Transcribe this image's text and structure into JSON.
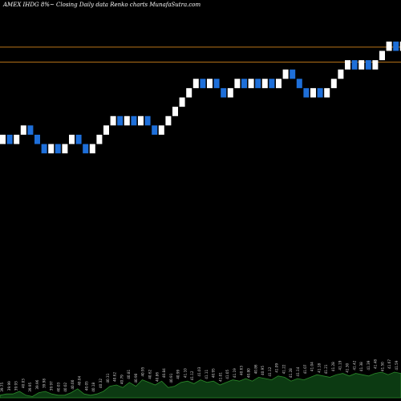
{
  "chart_data": {
    "type": "renko",
    "title": "AMEX  IHDG 8%~  Closing Daily data  Renko  charts MunafaSutra.com",
    "bricks": [
      {
        "close": 40.5,
        "dir": "up"
      },
      {
        "close": 40.25,
        "dir": "down"
      },
      {
        "close": 40.5,
        "dir": "up"
      },
      {
        "close": 40.75,
        "dir": "up"
      },
      {
        "close": 40.5,
        "dir": "down"
      },
      {
        "close": 40.25,
        "dir": "down"
      },
      {
        "close": 40.0,
        "dir": "down"
      },
      {
        "close": 40.25,
        "dir": "up"
      },
      {
        "close": 40.0,
        "dir": "down"
      },
      {
        "close": 40.25,
        "dir": "up"
      },
      {
        "close": 40.5,
        "dir": "up"
      },
      {
        "close": 40.25,
        "dir": "down"
      },
      {
        "close": 40.0,
        "dir": "down"
      },
      {
        "close": 40.25,
        "dir": "up"
      },
      {
        "close": 40.5,
        "dir": "up"
      },
      {
        "close": 40.75,
        "dir": "up"
      },
      {
        "close": 41.0,
        "dir": "up"
      },
      {
        "close": 40.75,
        "dir": "down"
      },
      {
        "close": 41.0,
        "dir": "up"
      },
      {
        "close": 40.75,
        "dir": "down"
      },
      {
        "close": 41.0,
        "dir": "up"
      },
      {
        "close": 40.75,
        "dir": "down"
      },
      {
        "close": 40.5,
        "dir": "down"
      },
      {
        "close": 40.75,
        "dir": "up"
      },
      {
        "close": 41.0,
        "dir": "up"
      },
      {
        "close": 41.25,
        "dir": "up"
      },
      {
        "close": 41.5,
        "dir": "up"
      },
      {
        "close": 41.75,
        "dir": "up"
      },
      {
        "close": 42.0,
        "dir": "up"
      },
      {
        "close": 41.75,
        "dir": "down"
      },
      {
        "close": 42.0,
        "dir": "up"
      },
      {
        "close": 41.75,
        "dir": "down"
      },
      {
        "close": 41.5,
        "dir": "down"
      },
      {
        "close": 41.75,
        "dir": "up"
      },
      {
        "close": 42.0,
        "dir": "up"
      },
      {
        "close": 41.75,
        "dir": "down"
      },
      {
        "close": 42.0,
        "dir": "up"
      },
      {
        "close": 41.75,
        "dir": "down"
      },
      {
        "close": 42.0,
        "dir": "up"
      },
      {
        "close": 41.75,
        "dir": "down"
      },
      {
        "close": 42.0,
        "dir": "up"
      },
      {
        "close": 42.25,
        "dir": "up"
      },
      {
        "close": 42.0,
        "dir": "down"
      },
      {
        "close": 41.75,
        "dir": "down"
      },
      {
        "close": 41.5,
        "dir": "down"
      },
      {
        "close": 41.75,
        "dir": "up"
      },
      {
        "close": 41.5,
        "dir": "down"
      },
      {
        "close": 41.75,
        "dir": "up"
      },
      {
        "close": 42.0,
        "dir": "up"
      },
      {
        "close": 42.25,
        "dir": "up"
      },
      {
        "close": 42.5,
        "dir": "up"
      },
      {
        "close": 42.25,
        "dir": "down"
      },
      {
        "close": 42.5,
        "dir": "up"
      },
      {
        "close": 42.25,
        "dir": "down"
      },
      {
        "close": 42.5,
        "dir": "up"
      },
      {
        "close": 42.75,
        "dir": "up"
      },
      {
        "close": 43.0,
        "dir": "up"
      },
      {
        "close": 42.75,
        "dir": "down"
      },
      {
        "close": 43.0,
        "dir": "up"
      }
    ],
    "brick_size": 0.25,
    "hlines": [
      42.85,
      42.45
    ],
    "ylim": [
      34.0,
      43.9
    ],
    "volume": [
      2,
      3,
      3,
      5,
      2,
      1,
      4,
      5,
      3,
      2,
      2,
      4,
      7,
      3,
      2,
      3,
      5,
      9,
      10,
      8,
      12,
      9,
      14,
      12,
      10,
      13,
      8,
      9,
      12,
      13,
      11,
      14,
      12,
      13,
      10,
      12,
      14,
      13,
      15,
      13,
      16,
      15,
      14,
      17,
      16,
      13,
      15,
      14,
      16,
      18,
      17,
      16,
      18,
      19,
      17,
      19,
      18,
      17,
      19,
      20,
      18,
      20,
      19
    ],
    "volume_labels": [
      "39.75",
      "39.99",
      "39.93",
      "40.03",
      "39.95",
      "39.96",
      "39.98",
      "39.97",
      "40.03",
      "40.02",
      "40.00",
      "40.04",
      "40.05",
      "40.18",
      "40.32",
      "40.31",
      "40.62",
      "40.79",
      "40.81",
      "40.90",
      "40.95",
      "40.62",
      "40.86",
      "40.84",
      "40.91",
      "40.99",
      "41.10",
      "41.12",
      "41.03",
      "41.11",
      "40.95",
      "41.01",
      "41.05",
      "41.19",
      "40.63",
      "40.80",
      "40.86",
      "40.95",
      "41.12",
      "41.09",
      "41.22",
      "41.28",
      "41.14",
      "41.07",
      "41.04",
      "41.18",
      "41.21",
      "41.28",
      "41.19",
      "41.30",
      "41.42",
      "41.38",
      "41.39",
      "41.48",
      "41.50",
      "41.67",
      "41.59"
    ],
    "colors": {
      "up": "#ffffff",
      "down": "#1e6fd9",
      "hline": "#b8741a",
      "volume_fill": "#0c3a12",
      "volume_stroke": "#2a8a2a",
      "label": "#cfcfcf"
    }
  }
}
